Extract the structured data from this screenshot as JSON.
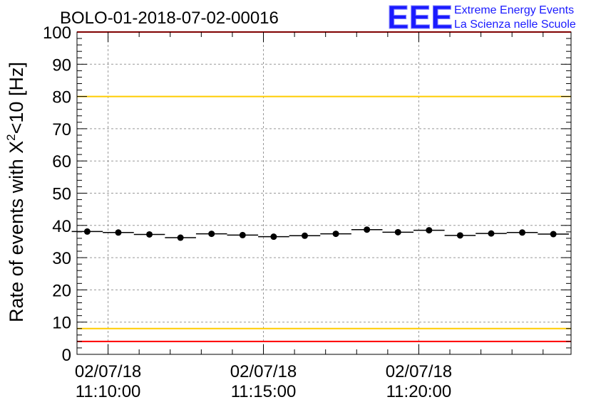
{
  "chart_data": {
    "type": "scatter",
    "title": "BOLO-01-2018-07-02-00016",
    "ylabel_main": "Rate of events with X",
    "ylabel_sup": "2",
    "ylabel_tail": "<10 [Hz]",
    "ylim": [
      0,
      100
    ],
    "y_ticks": [
      "0",
      "10",
      "20",
      "30",
      "40",
      "50",
      "60",
      "70",
      "80",
      "90",
      "100"
    ],
    "x_tick_labels": [
      {
        "date": "02/07/18",
        "time": "11:10:00"
      },
      {
        "date": "02/07/18",
        "time": "11:15:00"
      },
      {
        "date": "02/07/18",
        "time": "11:20:00"
      }
    ],
    "x_major_minutes": [
      10,
      15,
      20
    ],
    "xlim_minutes": [
      9.0,
      24.9
    ],
    "grid": true,
    "bin_width_minutes": 1.0,
    "points": [
      {
        "x": 9.33,
        "y": 38.1
      },
      {
        "x": 10.33,
        "y": 37.8
      },
      {
        "x": 11.33,
        "y": 37.2
      },
      {
        "x": 12.33,
        "y": 36.2
      },
      {
        "x": 13.33,
        "y": 37.4
      },
      {
        "x": 14.33,
        "y": 37.0
      },
      {
        "x": 15.33,
        "y": 36.5
      },
      {
        "x": 16.33,
        "y": 36.8
      },
      {
        "x": 17.33,
        "y": 37.4
      },
      {
        "x": 18.33,
        "y": 38.7
      },
      {
        "x": 19.33,
        "y": 37.9
      },
      {
        "x": 20.33,
        "y": 38.5
      },
      {
        "x": 21.33,
        "y": 36.9
      },
      {
        "x": 22.33,
        "y": 37.5
      },
      {
        "x": 23.33,
        "y": 37.8
      },
      {
        "x": 24.33,
        "y": 37.3
      }
    ],
    "reference_lines": [
      {
        "y": 100,
        "color": "#ff0000"
      },
      {
        "y": 80,
        "color": "#ffcc00"
      },
      {
        "y": 8,
        "color": "#ffcc00"
      },
      {
        "y": 4,
        "color": "#ff0000"
      }
    ]
  },
  "logo": {
    "mark": "EEE",
    "line1": "Extreme Energy Events",
    "line2": "La Scienza nelle Scuole"
  }
}
